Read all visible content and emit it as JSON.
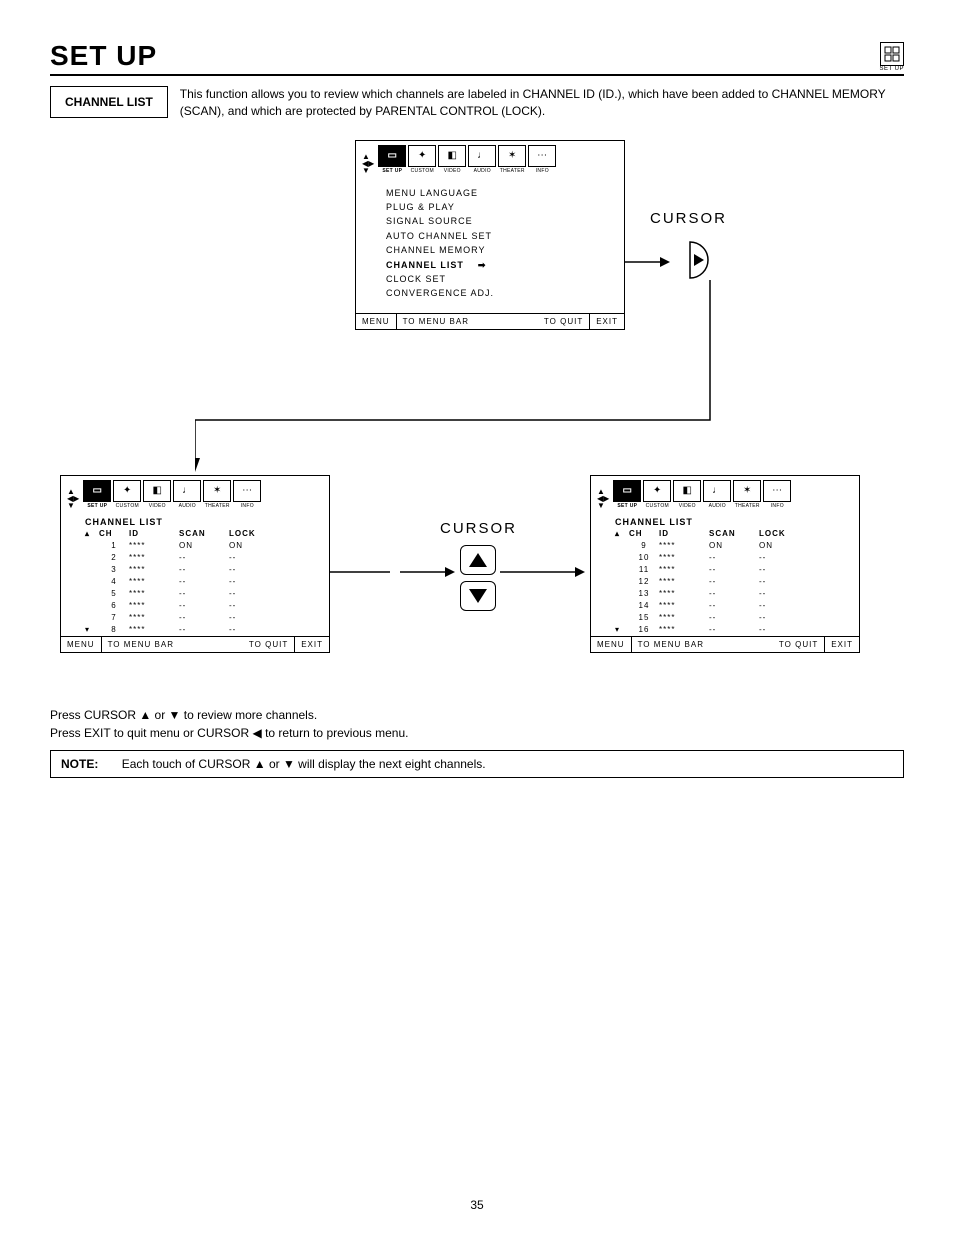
{
  "page": {
    "title": "SET UP",
    "setup_icon_label": "SET UP",
    "pagenum": "35"
  },
  "intro": {
    "box_label": "CHANNEL LIST",
    "text": "This function allows you to review which channels are labeled in CHANNEL ID (ID.), which have been added to CHANNEL MEMORY (SCAN), and which are protected by PARENTAL CONTROL (LOCK)."
  },
  "menu_tabs": [
    {
      "label": "SET UP",
      "selected": true,
      "glyph": "▭"
    },
    {
      "label": "CUSTOM",
      "selected": false,
      "glyph": "✦"
    },
    {
      "label": "VIDEO",
      "selected": false,
      "glyph": "◧"
    },
    {
      "label": "AUDIO",
      "selected": false,
      "glyph": "♩"
    },
    {
      "label": "THEATER",
      "selected": false,
      "glyph": "✶"
    },
    {
      "label": "INFO",
      "selected": false,
      "glyph": "⋯"
    }
  ],
  "setup_menu": {
    "items": [
      {
        "label": "MENU LANGUAGE",
        "selected": false
      },
      {
        "label": "PLUG & PLAY",
        "selected": false
      },
      {
        "label": "SIGNAL SOURCE",
        "selected": false
      },
      {
        "label": "AUTO CHANNEL SET",
        "selected": false
      },
      {
        "label": "CHANNEL MEMORY",
        "selected": false
      },
      {
        "label": "CHANNEL LIST",
        "selected": true
      },
      {
        "label": "CLOCK SET",
        "selected": false
      },
      {
        "label": "CONVERGENCE ADJ.",
        "selected": false
      }
    ],
    "footer": {
      "menu": "MENU",
      "to_menu_bar": "TO MENU BAR",
      "to_quit": "TO QUIT",
      "exit": "EXIT"
    }
  },
  "channel_list_left": {
    "title": "CHANNEL LIST",
    "columns": [
      "CH",
      "ID",
      "SCAN",
      "LOCK"
    ],
    "rows": [
      {
        "ch": "1",
        "id": "****",
        "scan": "ON",
        "lock": "ON"
      },
      {
        "ch": "2",
        "id": "****",
        "scan": "--",
        "lock": "--"
      },
      {
        "ch": "3",
        "id": "****",
        "scan": "--",
        "lock": "--"
      },
      {
        "ch": "4",
        "id": "****",
        "scan": "--",
        "lock": "--"
      },
      {
        "ch": "5",
        "id": "****",
        "scan": "--",
        "lock": "--"
      },
      {
        "ch": "6",
        "id": "****",
        "scan": "--",
        "lock": "--"
      },
      {
        "ch": "7",
        "id": "****",
        "scan": "--",
        "lock": "--"
      },
      {
        "ch": "8",
        "id": "****",
        "scan": "--",
        "lock": "--"
      }
    ]
  },
  "channel_list_right": {
    "title": "CHANNEL LIST",
    "columns": [
      "CH",
      "ID",
      "SCAN",
      "LOCK"
    ],
    "rows": [
      {
        "ch": "9",
        "id": "****",
        "scan": "ON",
        "lock": "ON"
      },
      {
        "ch": "10",
        "id": "****",
        "scan": "--",
        "lock": "--"
      },
      {
        "ch": "11",
        "id": "****",
        "scan": "--",
        "lock": "--"
      },
      {
        "ch": "12",
        "id": "****",
        "scan": "--",
        "lock": "--"
      },
      {
        "ch": "13",
        "id": "****",
        "scan": "--",
        "lock": "--"
      },
      {
        "ch": "14",
        "id": "****",
        "scan": "--",
        "lock": "--"
      },
      {
        "ch": "15",
        "id": "****",
        "scan": "--",
        "lock": "--"
      },
      {
        "ch": "16",
        "id": "****",
        "scan": "--",
        "lock": "--"
      }
    ]
  },
  "cursor": {
    "label": "CURSOR",
    "label_center": "CURSOR"
  },
  "instructions": {
    "line1": "Press CURSOR ▲ or ▼ to review more channels.",
    "line2": "Press EXIT to quit menu or CURSOR ◀ to return to previous menu."
  },
  "note": {
    "label": "NOTE:",
    "text": "Each touch of CURSOR ▲ or ▼ will display the next eight channels."
  },
  "colors": {
    "fg": "#000000",
    "bg": "#ffffff"
  }
}
